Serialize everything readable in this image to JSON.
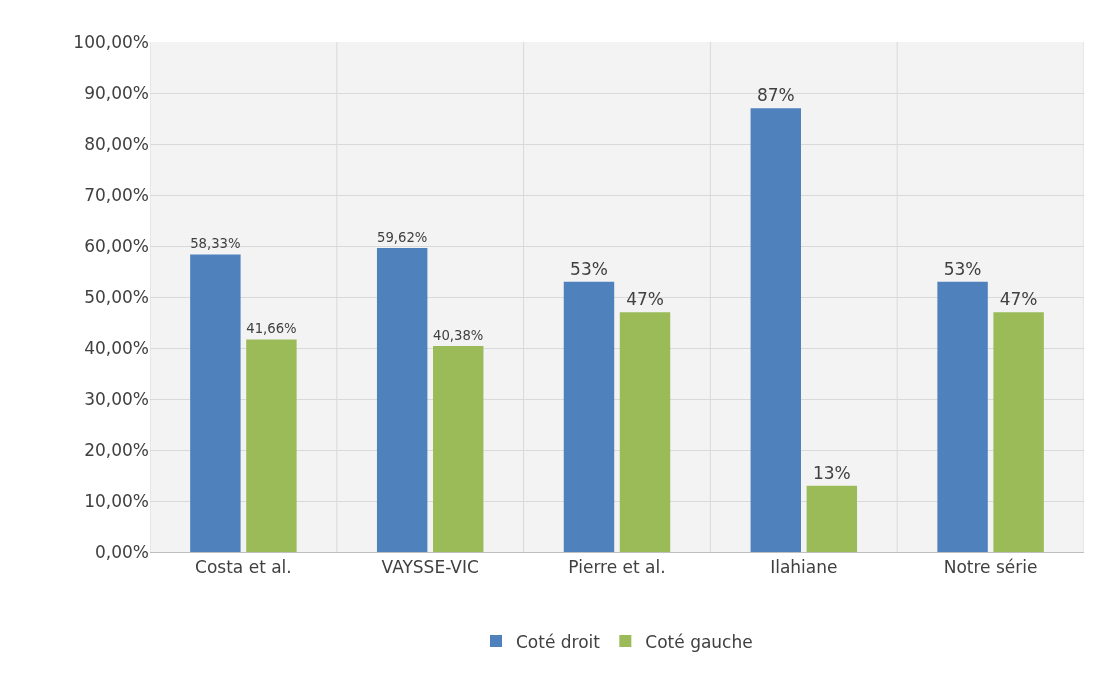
{
  "chart_data": {
    "type": "bar",
    "categories": [
      "Costa et al.",
      "VAYSSE-VIC",
      "Pierre et al.",
      "Ilahiane",
      "Notre série"
    ],
    "series": [
      {
        "name": "Coté droit",
        "color": "#4f81bd",
        "values": [
          58.33,
          59.62,
          53,
          87,
          53
        ],
        "value_labels": [
          "58,33%",
          "59,62%",
          "53%",
          "87%",
          "53%"
        ]
      },
      {
        "name": "Coté gauche",
        "color": "#9bbb59",
        "values": [
          41.66,
          40.38,
          47,
          13,
          47
        ],
        "value_labels": [
          "41,66%",
          "40,38%",
          "47%",
          "13%",
          "47%"
        ]
      }
    ],
    "ylim": [
      0,
      100
    ],
    "yticks": [
      {
        "value": 0,
        "label": "0,00%"
      },
      {
        "value": 10,
        "label": "10,00%"
      },
      {
        "value": 20,
        "label": "20,00%"
      },
      {
        "value": 30,
        "label": "30,00%"
      },
      {
        "value": 40,
        "label": "40,00%"
      },
      {
        "value": 50,
        "label": "50,00%"
      },
      {
        "value": 60,
        "label": "60,00%"
      },
      {
        "value": 70,
        "label": "70,00%"
      },
      {
        "value": 80,
        "label": "80,00%"
      },
      {
        "value": 90,
        "label": "90,00%"
      },
      {
        "value": 100,
        "label": "100,00%"
      }
    ],
    "grid": true,
    "legend": "bottom"
  }
}
